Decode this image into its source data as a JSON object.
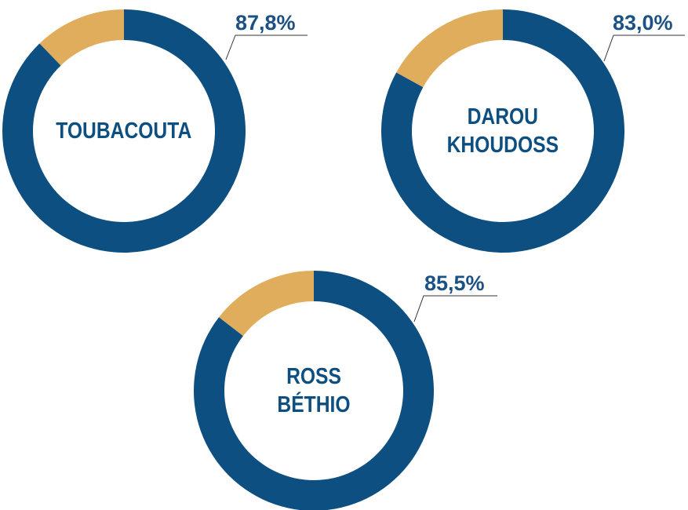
{
  "chart_data": [
    {
      "type": "donut",
      "title": "TOUBACOUTA",
      "values": [
        87.8,
        12.2
      ],
      "value_labels": [
        "87,8%",
        null
      ],
      "colors": [
        "#0d4f80",
        "#e0ad5c"
      ]
    },
    {
      "type": "donut",
      "title": "DAROU KHOUDOSS",
      "values": [
        83.0,
        17.0
      ],
      "value_labels": [
        "83,0%",
        null
      ],
      "colors": [
        "#0d4f80",
        "#e0ad5c"
      ]
    },
    {
      "type": "donut",
      "title": "ROSS BÉTHIO",
      "values": [
        85.5,
        14.5
      ],
      "value_labels": [
        "85,5%",
        null
      ],
      "colors": [
        "#0d4f80",
        "#e0ad5c"
      ]
    }
  ]
}
